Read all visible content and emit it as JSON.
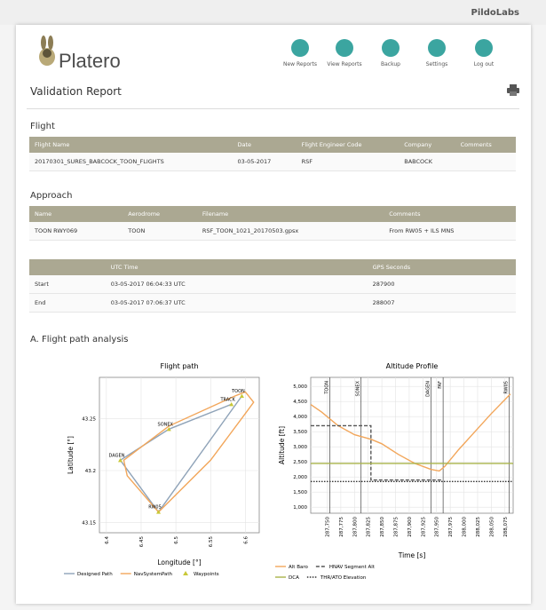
{
  "brand": "PildoLabs",
  "logo": "Platero",
  "nav": [
    "New Reports",
    "View Reports",
    "Backup",
    "Settings",
    "Log out"
  ],
  "title": "Validation Report",
  "flight": {
    "heading": "Flight",
    "headers": [
      "Flight Name",
      "Date",
      "Flight Engineer Code",
      "Company",
      "Comments"
    ],
    "rows": [
      [
        "20170301_SURES_BABCOCK_TOON_FLIGHTS",
        "03-05-2017",
        "RSF",
        "BABCOCK"
      ]
    ]
  },
  "approach": {
    "heading": "Approach",
    "headers": [
      "Name",
      "Aerodrome",
      "Filename",
      "Comments"
    ],
    "rows": [
      [
        "TOON RWY069",
        "TOON",
        "RSF_TOON_1021_20170503.gpsx",
        "From RW05 + ILS MNS"
      ]
    ]
  },
  "times": {
    "headers": [
      "UTC Time",
      "GPS Seconds"
    ],
    "rows": [
      [
        "Start",
        "03-05-2017 06:04:33 UTC",
        "287900"
      ],
      [
        "End",
        "03-05-2017 07:06:37 UTC",
        "288007"
      ]
    ]
  },
  "section": "A. Flight path analysis",
  "flight_path": {
    "type": "line",
    "title": "Flight path",
    "xlabel": "Longitude [°]",
    "ylabel": "Latitude [°]",
    "xlim": [
      6.39,
      6.62
    ],
    "ylim": [
      43.14,
      43.29
    ],
    "xticks": [
      6.4,
      6.45,
      6.5,
      6.55,
      6.6
    ],
    "yticks": [
      43.15,
      43.2,
      43.25
    ],
    "grid": true,
    "series": [
      {
        "name": "Designed Path",
        "color": "#8fa3b8",
        "style": "solid",
        "x": [
          6.58,
          6.49,
          6.42,
          6.475,
          6.595
        ],
        "y": [
          43.264,
          43.24,
          43.21,
          43.16,
          43.272
        ]
      },
      {
        "name": "NavSystemPath",
        "color": "#f2a65a",
        "style": "solid",
        "x": [
          6.475,
          6.55,
          6.6,
          6.612,
          6.6,
          6.585,
          6.49,
          6.425,
          6.43,
          6.475
        ],
        "y": [
          43.16,
          43.21,
          43.255,
          43.266,
          43.276,
          43.272,
          43.243,
          43.21,
          43.195,
          43.16
        ]
      }
    ],
    "waypoints": {
      "name": "Waypoints",
      "color": "#c9c838",
      "labels": [
        "TOON",
        "TRACK",
        "SONEX",
        "DAGEN",
        "RW05"
      ],
      "x": [
        6.595,
        6.58,
        6.49,
        6.42,
        6.475
      ],
      "y": [
        43.272,
        43.264,
        43.24,
        43.21,
        43.16
      ]
    }
  },
  "altitude": {
    "type": "line",
    "title": "Altitude Profile",
    "xlabel": "Time [s]",
    "ylabel": "Altitude [ft]",
    "xlim": [
      287720,
      288090
    ],
    "ylim": [
      800,
      5300
    ],
    "xticks": [
      {
        "value": 287750,
        "label": "287,750"
      },
      {
        "value": 287775,
        "label": "287,775"
      },
      {
        "value": 287800,
        "label": "287,800"
      },
      {
        "value": 287825,
        "label": "287,825"
      },
      {
        "value": 287850,
        "label": "287,850"
      },
      {
        "value": 287875,
        "label": "287,875"
      },
      {
        "value": 287900,
        "label": "287,900"
      },
      {
        "value": 287925,
        "label": "287,925"
      },
      {
        "value": 287950,
        "label": "287,950"
      },
      {
        "value": 287975,
        "label": "287,975"
      },
      {
        "value": 288000,
        "label": "288,000"
      },
      {
        "value": 288025,
        "label": "288,025"
      },
      {
        "value": 288050,
        "label": "288,050"
      },
      {
        "value": 288075,
        "label": "288,075"
      }
    ],
    "yticks": [
      {
        "value": 1000,
        "label": "1,000"
      },
      {
        "value": 1500,
        "label": "1,500"
      },
      {
        "value": 2000,
        "label": "2,000"
      },
      {
        "value": 2500,
        "label": "2,500"
      },
      {
        "value": 3000,
        "label": "3,000"
      },
      {
        "value": 3500,
        "label": "3,500"
      },
      {
        "value": 4000,
        "label": "4,000"
      },
      {
        "value": 4500,
        "label": "4,500"
      },
      {
        "value": 5000,
        "label": "5,000"
      }
    ],
    "grid": true,
    "series": [
      {
        "name": "Alt Baro",
        "color": "#f2a65a",
        "style": "solid",
        "x": [
          287720,
          287740,
          287770,
          287800,
          287830,
          287850,
          287880,
          287910,
          287940,
          287955,
          287965,
          287990,
          288020,
          288050,
          288085
        ],
        "y": [
          4400,
          4150,
          3700,
          3400,
          3250,
          3100,
          2750,
          2450,
          2250,
          2200,
          2350,
          2900,
          3500,
          4100,
          4750
        ]
      },
      {
        "name": "HNAV Segment Alt",
        "color": "#555555",
        "style": "dashed",
        "x": [
          287720,
          287830,
          287830,
          287960
        ],
        "y": [
          3700,
          3700,
          1900,
          1900
        ]
      },
      {
        "name": "DCA",
        "color": "#a9b34a",
        "style": "solid",
        "x": [
          287720,
          288090
        ],
        "y": [
          2450,
          2450
        ]
      },
      {
        "name": "THR/ATO Elevation",
        "color": "#333333",
        "style": "dotted",
        "x": [
          287720,
          288090
        ],
        "y": [
          1850,
          1850
        ]
      }
    ],
    "events": {
      "labels": [
        "TOON",
        "SONEX",
        "DAGEN",
        "FAF",
        "RW05"
      ],
      "x": [
        287755,
        287812,
        287940,
        287962,
        288083
      ]
    }
  }
}
